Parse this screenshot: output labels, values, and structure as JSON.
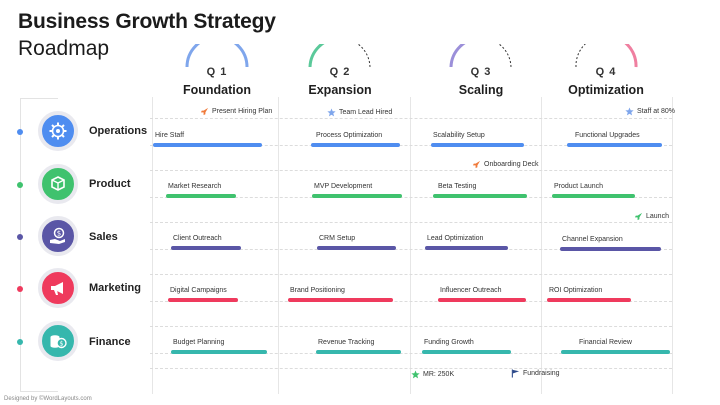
{
  "header": {
    "title": "Business Growth Strategy",
    "subtitle": "Roadmap"
  },
  "quarters": [
    {
      "label": "Q 1",
      "name": "Foundation",
      "color": "#7fa6ec"
    },
    {
      "label": "Q 2",
      "name": "Expansion",
      "color": "#5bc99a"
    },
    {
      "label": "Q 3",
      "name": "Scaling",
      "color": "#9b8fd9"
    },
    {
      "label": "Q 4",
      "name": "Optimization",
      "color": "#ef7fa0"
    }
  ],
  "departments": [
    {
      "name": "Operations",
      "color": "#4f8df0",
      "icon": "gear-icon"
    },
    {
      "name": "Product",
      "color": "#3fc26e",
      "icon": "box-icon"
    },
    {
      "name": "Sales",
      "color": "#5a56a6",
      "icon": "money-hand-icon"
    },
    {
      "name": "Marketing",
      "color": "#ef3a5d",
      "icon": "megaphone-icon"
    },
    {
      "name": "Finance",
      "color": "#36b7ad",
      "icon": "coins-icon"
    }
  ],
  "tasks": {
    "operations": [
      "Hire Staff",
      "Process Optimization",
      "Scalability Setup",
      "Functional Upgrades"
    ],
    "product": [
      "Market Research",
      "MVP Development",
      "Beta Testing",
      "Product Launch"
    ],
    "sales": [
      "Client Outreach",
      "CRM Setup",
      "Lead Optimization",
      "Channel Expansion"
    ],
    "marketing": [
      "Digital Campaigns",
      "Brand Positioning",
      "Influencer Outreach",
      "ROI Optimization"
    ],
    "finance": [
      "Budget Planning",
      "Revenue Tracking",
      "Funding Growth",
      "Financial Review"
    ]
  },
  "milestones": {
    "present_hiring_plan": "Present Hiring Plan",
    "team_lead_hired": "Team Lead Hired",
    "staff_at_80": "Staff at 80%",
    "onboarding_deck": "Onboarding Deck",
    "launch": "Launch",
    "mr_250k": "MR: 250K",
    "fundraising": "Fundraising"
  },
  "milestone_colors": {
    "rocket": "#f07a3a",
    "star": "#7fa6ec",
    "green_star": "#3fc26e",
    "flag": "#2d4a8a"
  },
  "footer": {
    "credit": "Designed by ©WordLayouts.com"
  }
}
